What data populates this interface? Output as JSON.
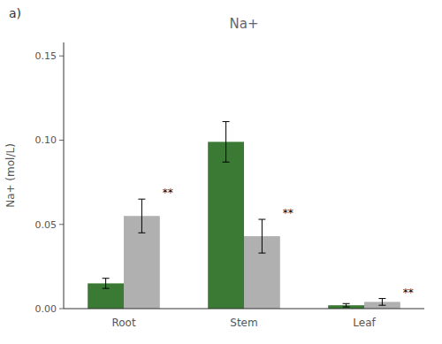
{
  "chart_data": {
    "type": "bar",
    "title": "Na+",
    "ylabel": "Na+ (mol/L)",
    "panel_label": "a)",
    "categories": [
      "Root",
      "Stem",
      "Leaf"
    ],
    "series": [
      {
        "color": "#3a7a35",
        "values": [
          0.015,
          0.099,
          0.002
        ],
        "errors": [
          0.003,
          0.012,
          0.001
        ]
      },
      {
        "color": "#b0b0b0",
        "values": [
          0.055,
          0.043,
          0.004
        ],
        "errors": [
          0.01,
          0.01,
          0.002
        ],
        "annotations": [
          "**",
          "**",
          "**"
        ]
      }
    ],
    "ylim": [
      0,
      0.158
    ],
    "yticks": [
      {
        "value": 0.0,
        "label": "0.00"
      },
      0.05,
      {
        "value": 0.1,
        "label": "0.10"
      },
      0.15
    ],
    "grid": false
  }
}
